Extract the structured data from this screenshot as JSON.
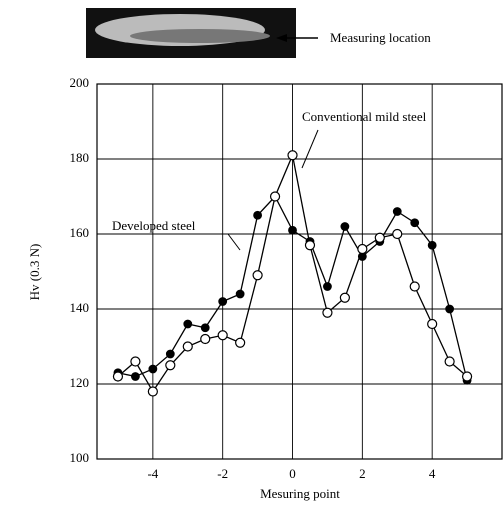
{
  "chart_data": {
    "type": "line",
    "photo_label": "Measuring location",
    "x_label": "Mesuring point",
    "y_label": "Hv (0.3 N)",
    "x": [
      -5,
      -4.5,
      -4,
      -3.5,
      -3,
      -2.5,
      -2,
      -1.5,
      -1,
      -0.5,
      0,
      0.5,
      1,
      1.5,
      2,
      2.5,
      3,
      3.5,
      4,
      4.5,
      5
    ],
    "series": [
      {
        "name": "Developed steel",
        "color": "#000000",
        "marker": "filled",
        "values": [
          123,
          122,
          124,
          128,
          136,
          135,
          142,
          144,
          165,
          170,
          161,
          158,
          146,
          162,
          154,
          158,
          166,
          163,
          157,
          140,
          121
        ]
      },
      {
        "name": "Conventional mild steel",
        "color": "#000000",
        "marker": "open",
        "values": [
          122,
          126,
          118,
          125,
          130,
          132,
          133,
          131,
          149,
          170,
          181,
          157,
          139,
          143,
          156,
          159,
          160,
          146,
          136,
          126,
          122
        ]
      }
    ],
    "xlim": [
      -5.6,
      6
    ],
    "xticks": [
      -4,
      -2,
      0,
      2,
      4
    ],
    "ylim": [
      100,
      200
    ],
    "yticks": [
      100,
      120,
      140,
      160,
      180,
      200
    ],
    "grid": true
  }
}
